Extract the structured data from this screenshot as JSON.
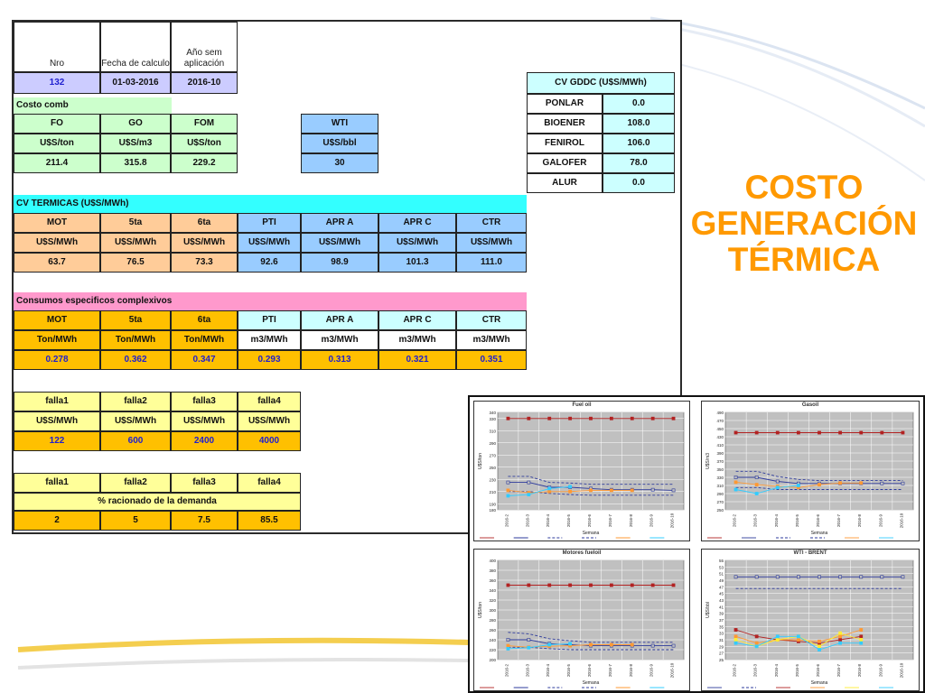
{
  "header": {
    "col_nro": "Nro",
    "col_fecha": "Fecha de calculo",
    "col_anio": "Año sem aplicación",
    "nro": "132",
    "fecha": "01-03-2016",
    "anio": "2016-10"
  },
  "costo_comb": {
    "label": "Costo comb",
    "fo": {
      "name": "FO",
      "unit": "U$S/ton",
      "value": "211.4"
    },
    "go": {
      "name": "GO",
      "unit": "U$S/m3",
      "value": "315.8"
    },
    "fom": {
      "name": "FOM",
      "unit": "U$S/ton",
      "value": "229.2"
    },
    "wti": {
      "name": "WTI",
      "unit": "U$S/bbl",
      "value": "30"
    }
  },
  "cv_gddc": {
    "title": "CV GDDC (U$S/MWh)",
    "rows": [
      {
        "name": "PONLAR",
        "value": "0.0"
      },
      {
        "name": "BIOENER",
        "value": "108.0"
      },
      {
        "name": "FENIROL",
        "value": "106.0"
      },
      {
        "name": "GALOFER",
        "value": "78.0"
      },
      {
        "name": "ALUR",
        "value": "0.0"
      }
    ]
  },
  "cv_termicas": {
    "title": "CV TERMICAS (U$S/MWh)",
    "headers": [
      "MOT",
      "5ta",
      "6ta",
      "PTI",
      "APR A",
      "APR C",
      "CTR"
    ],
    "units": [
      "U$S/MWh",
      "U$S/MWh",
      "U$S/MWh",
      "U$S/MWh",
      "U$S/MWh",
      "U$S/MWh",
      "U$S/MWh"
    ],
    "values": [
      "63.7",
      "76.5",
      "73.3",
      "92.6",
      "98.9",
      "101.3",
      "111.0"
    ]
  },
  "consumos": {
    "title": "Consumos especificos complexivos",
    "headers": [
      "MOT",
      "5ta",
      "6ta",
      "PTI",
      "APR A",
      "APR C",
      "CTR"
    ],
    "units": [
      "Ton/MWh",
      "Ton/MWh",
      "Ton/MWh",
      "m3/MWh",
      "m3/MWh",
      "m3/MWh",
      "m3/MWh"
    ],
    "values": [
      "0.278",
      "0.362",
      "0.347",
      "0.293",
      "0.313",
      "0.321",
      "0.351"
    ]
  },
  "falla_costos": {
    "headers": [
      "falla1",
      "falla2",
      "falla3",
      "falla4"
    ],
    "units": [
      "U$S/MWh",
      "U$S/MWh",
      "U$S/MWh",
      "U$S/MWh"
    ],
    "values": [
      "122",
      "600",
      "2400",
      "4000"
    ]
  },
  "falla_racionado": {
    "headers": [
      "falla1",
      "falla2",
      "falla3",
      "falla4"
    ],
    "label": "% racionado de la demanda",
    "values": [
      "2",
      "5",
      "7.5",
      "85.5"
    ]
  },
  "page_title": {
    "line1": "COSTO",
    "line2": "GENERACIÓN",
    "line3": "TÉRMICA"
  },
  "colors": {
    "title": "#ff9900",
    "upper": "#b22222",
    "main": "#2e3b9c",
    "cyan": "#33ccff",
    "orange": "#ff9933",
    "yellow": "#ffee33"
  },
  "chart_data": [
    {
      "type": "line",
      "title": "Fuel oil",
      "ylabel": "U$S/ton",
      "xlabel": "Semana",
      "ylim": [
        180,
        340
      ],
      "yticks": [
        "340",
        "330",
        "310",
        "290",
        "270",
        "250",
        "230",
        "210",
        "190",
        "180"
      ],
      "categories": [
        "2016-2",
        "2016-3",
        "2016-4",
        "2016-5",
        "2016-6",
        "2016-7",
        "2016-8",
        "2016-9",
        "2016-10"
      ],
      "series": [
        {
          "values": [
            330,
            330,
            330,
            330,
            330,
            330,
            330,
            330,
            330
          ],
          "color": "#b22222",
          "dash": false
        },
        {
          "values": [
            225,
            225,
            217,
            217,
            215,
            213,
            213,
            213,
            212
          ],
          "color": "#2e3b9c",
          "dash": false
        },
        {
          "values": [
            235,
            235,
            225,
            224,
            222,
            222,
            222,
            222,
            222
          ],
          "color": "#2e3b9c",
          "dash": true
        },
        {
          "values": [
            210,
            210,
            207,
            205,
            204,
            204,
            204,
            204,
            204
          ],
          "color": "#2e3b9c",
          "dash": true
        },
        {
          "values": [
            212,
            208,
            210,
            210,
            212,
            212,
            212,
            null,
            null
          ],
          "color": "#ff9933",
          "dash": false
        },
        {
          "values": [
            203,
            205,
            215,
            218,
            null,
            null,
            null,
            null,
            null
          ],
          "color": "#33ccff",
          "dash": false
        }
      ]
    },
    {
      "type": "line",
      "title": "Gasoil",
      "ylabel": "U$S/m3",
      "xlabel": "Semana",
      "ylim": [
        250,
        490
      ],
      "yticks": [
        "490",
        "470",
        "450",
        "430",
        "410",
        "390",
        "370",
        "350",
        "330",
        "310",
        "290",
        "270",
        "250"
      ],
      "categories": [
        "2016-2",
        "2016-3",
        "2016-4",
        "2016-5",
        "2016-6",
        "2016-7",
        "2016-8",
        "2016-9",
        "2016-10"
      ],
      "series": [
        {
          "values": [
            440,
            440,
            440,
            440,
            440,
            440,
            440,
            440,
            440
          ],
          "color": "#b22222",
          "dash": false
        },
        {
          "values": [
            330,
            330,
            320,
            315,
            315,
            315,
            315,
            315,
            315
          ],
          "color": "#2e3b9c",
          "dash": false
        },
        {
          "values": [
            345,
            345,
            332,
            325,
            322,
            322,
            322,
            322,
            322
          ],
          "color": "#2e3b9c",
          "dash": true
        },
        {
          "values": [
            305,
            305,
            300,
            300,
            300,
            300,
            300,
            300,
            300
          ],
          "color": "#2e3b9c",
          "dash": true
        },
        {
          "values": [
            318,
            312,
            308,
            305,
            312,
            316,
            316,
            null,
            null
          ],
          "color": "#ff9933",
          "dash": false
        },
        {
          "values": [
            300,
            290,
            305,
            310,
            null,
            null,
            null,
            null,
            null
          ],
          "color": "#33ccff",
          "dash": false
        }
      ]
    },
    {
      "type": "line",
      "title": "Motores fueloil",
      "ylabel": "U$S/ton",
      "xlabel": "Semana",
      "ylim": [
        200,
        400
      ],
      "yticks": [
        "400",
        "380",
        "360",
        "340",
        "320",
        "300",
        "280",
        "260",
        "240",
        "220",
        "200"
      ],
      "categories": [
        "2016-2",
        "2016-3",
        "2016-4",
        "2016-5",
        "2016-6",
        "2016-7",
        "2016-8",
        "2016-9",
        "2016-10"
      ],
      "series": [
        {
          "values": [
            350,
            350,
            350,
            350,
            350,
            350,
            350,
            350,
            350
          ],
          "color": "#b22222",
          "dash": false
        },
        {
          "values": [
            240,
            240,
            232,
            230,
            228,
            228,
            228,
            228,
            228
          ],
          "color": "#2e3b9c",
          "dash": false
        },
        {
          "values": [
            255,
            252,
            242,
            238,
            235,
            235,
            235,
            235,
            235
          ],
          "color": "#2e3b9c",
          "dash": true
        },
        {
          "values": [
            225,
            225,
            222,
            220,
            220,
            220,
            220,
            220,
            220
          ],
          "color": "#2e3b9c",
          "dash": true
        },
        {
          "values": [
            228,
            225,
            227,
            228,
            230,
            230,
            230,
            null,
            null
          ],
          "color": "#ff9933",
          "dash": false
        },
        {
          "values": [
            222,
            224,
            230,
            232,
            null,
            null,
            null,
            null,
            null
          ],
          "color": "#33ccff",
          "dash": false
        }
      ]
    },
    {
      "type": "line",
      "title": "WTI - BRENT",
      "ylabel": "U$S/bbl",
      "xlabel": "Semana",
      "ylim": [
        25,
        55
      ],
      "yticks": [
        "55",
        "53",
        "51",
        "49",
        "47",
        "45",
        "43",
        "41",
        "39",
        "37",
        "35",
        "33",
        "31",
        "29",
        "27",
        "25"
      ],
      "categories": [
        "2016-2",
        "2016-3",
        "2016-4",
        "2016-5",
        "2016-6",
        "2016-7",
        "2016-8",
        "2016-9",
        "2016-10"
      ],
      "series": [
        {
          "values": [
            50,
            50,
            50,
            50,
            50,
            50,
            50,
            50,
            50
          ],
          "color": "#2e3b9c",
          "dash": false
        },
        {
          "values": [
            46.5,
            46.5,
            46.5,
            46.5,
            46.5,
            46.5,
            46.5,
            46.5,
            46.5
          ],
          "color": "#2e3b9c",
          "dash": true
        },
        {
          "values": [
            34,
            32,
            31,
            30.5,
            30,
            31,
            32,
            null,
            null
          ],
          "color": "#b22222",
          "dash": false
        },
        {
          "values": [
            32,
            30,
            31,
            31,
            30.5,
            32,
            34,
            null,
            null
          ],
          "color": "#ff9933",
          "dash": false
        },
        {
          "values": [
            31,
            29,
            31,
            32,
            29,
            33,
            31,
            null,
            null
          ],
          "color": "#ffee33",
          "dash": false
        },
        {
          "values": [
            30,
            29,
            32,
            32,
            28,
            30,
            30,
            null,
            null
          ],
          "color": "#33ccff",
          "dash": false
        }
      ]
    }
  ]
}
